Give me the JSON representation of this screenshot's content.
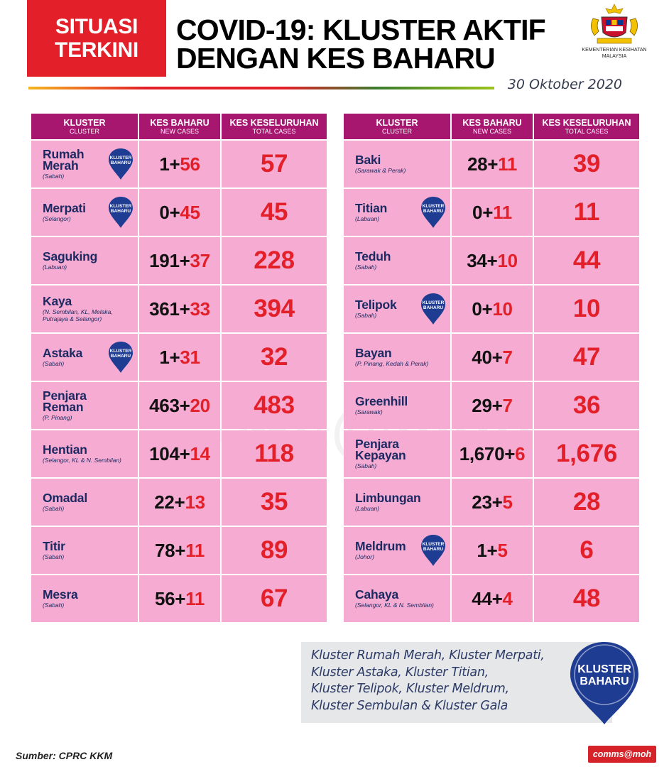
{
  "header": {
    "badge_line1": "SITUASI",
    "badge_line2": "TERKINI",
    "title_line1": "COVID-19: KLUSTER AKTIF",
    "title_line2": "DENGAN KES BAHARU",
    "ministry_name_line1": "KEMENTERIAN KESIHATAN",
    "ministry_name_line2": "MALAYSIA",
    "date": "30 Oktober 2020"
  },
  "table_headers": {
    "col1_main": "KLUSTER",
    "col1_sub": "CLUSTER",
    "col2_main": "KES BAHARU",
    "col2_sub": "NEW CASES",
    "col3_main": "KES KESELURUHAN",
    "col3_sub": "TOTAL CASES"
  },
  "pin_label_line1": "KLUSTER",
  "pin_label_line2": "BAHARU",
  "left_table": [
    {
      "name1": "Rumah",
      "name2": "Merah",
      "location": "(Sabah)",
      "base": "1+",
      "new": "56",
      "total": "57",
      "is_new_cluster": true
    },
    {
      "name1": "Merpati",
      "name2": "",
      "location": "(Selangor)",
      "base": "0+",
      "new": "45",
      "total": "45",
      "is_new_cluster": true
    },
    {
      "name1": "Saguking",
      "name2": "",
      "location": "(Labuan)",
      "base": "191+",
      "new": "37",
      "total": "228",
      "is_new_cluster": false
    },
    {
      "name1": "Kaya",
      "name2": "",
      "location": "(N. Sembilan, KL, Melaka, Putrajaya & Selangor)",
      "base": "361+",
      "new": "33",
      "total": "394",
      "is_new_cluster": false
    },
    {
      "name1": "Astaka",
      "name2": "",
      "location": "(Sabah)",
      "base": "1+",
      "new": "31",
      "total": "32",
      "is_new_cluster": true
    },
    {
      "name1": "Penjara",
      "name2": "Reman",
      "location": "(P. Pinang)",
      "base": "463+",
      "new": "20",
      "total": "483",
      "is_new_cluster": false
    },
    {
      "name1": "Hentian",
      "name2": "",
      "location": "(Selangor, KL & N. Sembilan)",
      "base": "104+",
      "new": "14",
      "total": "118",
      "is_new_cluster": false
    },
    {
      "name1": "Omadal",
      "name2": "",
      "location": "(Sabah)",
      "base": "22+",
      "new": "13",
      "total": "35",
      "is_new_cluster": false
    },
    {
      "name1": "Titir",
      "name2": "",
      "location": "(Sabah)",
      "base": "78+",
      "new": "11",
      "total": "89",
      "is_new_cluster": false
    },
    {
      "name1": "Mesra",
      "name2": "",
      "location": "(Sabah)",
      "base": "56+",
      "new": "11",
      "total": "67",
      "is_new_cluster": false
    }
  ],
  "right_table": [
    {
      "name1": "Baki",
      "name2": "",
      "location": "(Sarawak & Perak)",
      "base": "28+",
      "new": "11",
      "total": "39",
      "is_new_cluster": false
    },
    {
      "name1": "Titian",
      "name2": "",
      "location": "(Labuan)",
      "base": "0+",
      "new": "11",
      "total": "11",
      "is_new_cluster": true
    },
    {
      "name1": "Teduh",
      "name2": "",
      "location": "(Sabah)",
      "base": "34+",
      "new": "10",
      "total": "44",
      "is_new_cluster": false
    },
    {
      "name1": "Telipok",
      "name2": "",
      "location": "(Sabah)",
      "base": "0+",
      "new": "10",
      "total": "10",
      "is_new_cluster": true
    },
    {
      "name1": "Bayan",
      "name2": "",
      "location": "(P. Pinang, Kedah & Perak)",
      "base": "40+",
      "new": "7",
      "total": "47",
      "is_new_cluster": false
    },
    {
      "name1": "Greenhill",
      "name2": "",
      "location": "(Sarawak)",
      "base": "29+",
      "new": "7",
      "total": "36",
      "is_new_cluster": false
    },
    {
      "name1": "Penjara",
      "name2": "Kepayan",
      "location": "(Sabah)",
      "base": "1,670+",
      "new": "6",
      "total": "1,676",
      "is_new_cluster": false
    },
    {
      "name1": "Limbungan",
      "name2": "",
      "location": "(Labuan)",
      "base": "23+",
      "new": "5",
      "total": "28",
      "is_new_cluster": false
    },
    {
      "name1": "Meldrum",
      "name2": "",
      "location": "(Johor)",
      "base": "1+",
      "new": "5",
      "total": "6",
      "is_new_cluster": true
    },
    {
      "name1": "Cahaya",
      "name2": "",
      "location": "(Selangor, KL & N. Sembilan)",
      "base": "44+",
      "new": "4",
      "total": "48",
      "is_new_cluster": false
    }
  ],
  "note": {
    "line1": "Kluster Rumah Merah, Kluster Merpati,",
    "line2": "Kluster Astaka, Kluster Titian,",
    "line3": "Kluster Telipok, Kluster Meldrum,",
    "line4": "Kluster Sembulan & Kluster Gala"
  },
  "footer": {
    "source": "Sumber: CPRC KKM",
    "tag": "comms@moh"
  },
  "watermark": "comms@moh",
  "colors": {
    "brand_red": "#e3202a",
    "header_magenta": "#a7166f",
    "cell_pink": "#f6acd2",
    "name_navy": "#1b2a63",
    "pin_blue": "#1f3c93"
  },
  "icons": [
    "malaysia-coat-of-arms-icon",
    "map-pin-icon"
  ]
}
